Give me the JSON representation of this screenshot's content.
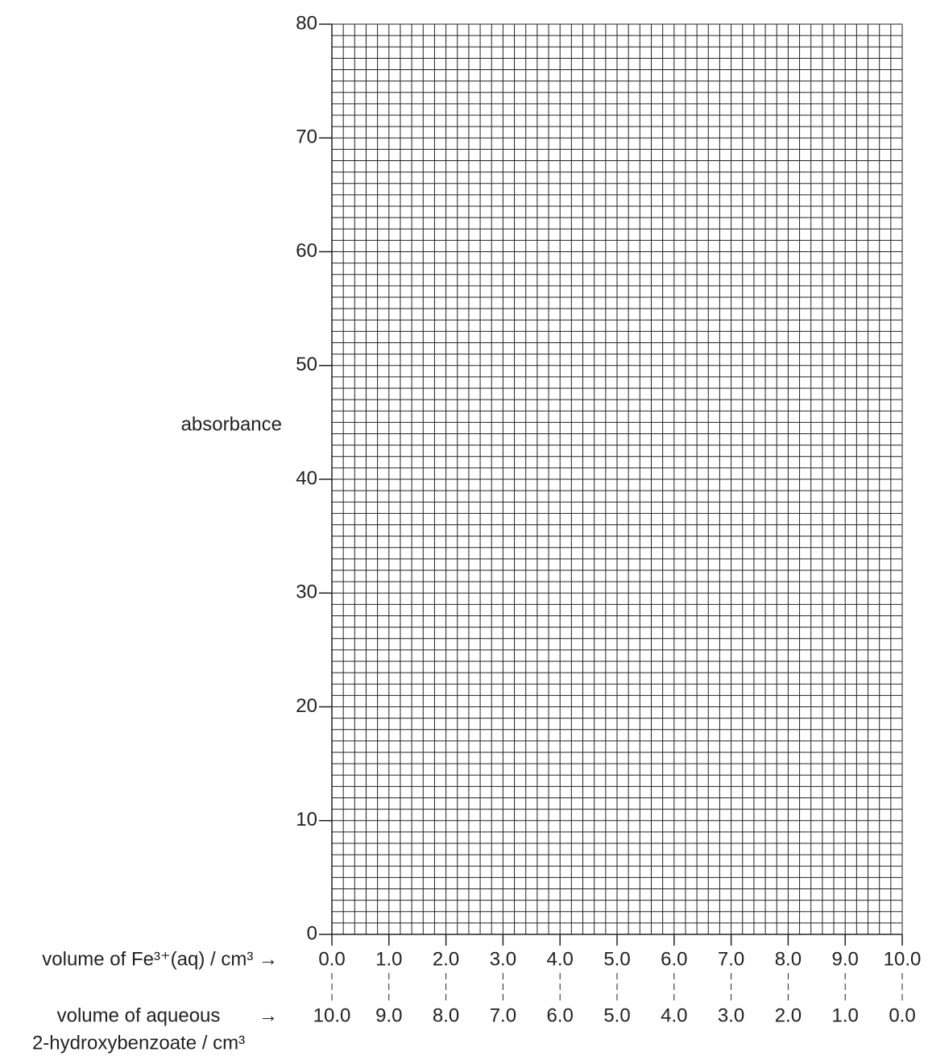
{
  "chart_data": {
    "type": "line",
    "ylabel": "absorbance",
    "xlabel": "volume of Fe³⁺(aq) / cm³ →",
    "x2label": [
      "volume of aqueous",
      "2-hydroxybenzoate / cm³"
    ],
    "x2_arrow": "→",
    "series": [],
    "ylim": [
      0,
      80
    ],
    "yticks": [
      0,
      10,
      20,
      30,
      40,
      50,
      60,
      70,
      80
    ],
    "xlim": [
      0,
      10
    ],
    "xticks": [
      {
        "value": 0,
        "label": "0.0"
      },
      {
        "value": 1,
        "label": "1.0"
      },
      {
        "value": 2,
        "label": "2.0"
      },
      {
        "value": 3,
        "label": "3.0"
      },
      {
        "value": 4,
        "label": "4.0"
      },
      {
        "value": 5,
        "label": "5.0"
      },
      {
        "value": 6,
        "label": "6.0"
      },
      {
        "value": 7,
        "label": "7.0"
      },
      {
        "value": 8,
        "label": "8.0"
      },
      {
        "value": 9,
        "label": "9.0"
      },
      {
        "value": 10,
        "label": "10.0"
      }
    ],
    "x2lim": [
      10,
      0
    ],
    "x2ticks": [
      {
        "value": 10,
        "label": "10.0"
      },
      {
        "value": 9,
        "label": "9.0"
      },
      {
        "value": 8,
        "label": "8.0"
      },
      {
        "value": 7,
        "label": "7.0"
      },
      {
        "value": 6,
        "label": "6.0"
      },
      {
        "value": 5,
        "label": "5.0"
      },
      {
        "value": 4,
        "label": "4.0"
      },
      {
        "value": 3,
        "label": "3.0"
      },
      {
        "value": 2,
        "label": "2.0"
      },
      {
        "value": 1,
        "label": "1.0"
      },
      {
        "value": 0,
        "label": "0.0"
      }
    ],
    "grid": true
  }
}
